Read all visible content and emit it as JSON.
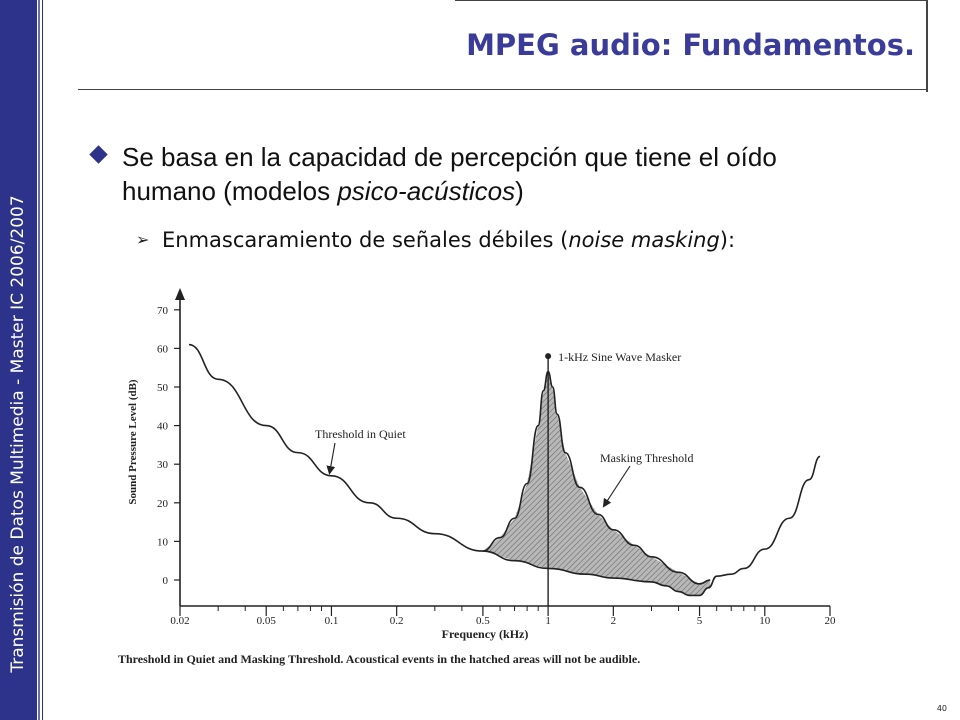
{
  "sidebar": {
    "text": "Transmisión de Datos Multimedia - Master IC 2006/2007"
  },
  "slide": {
    "title": "MPEG audio: Fundamentos.",
    "bullet1": {
      "pre": "Se basa en la capacidad de percepción que tiene el oído humano (modelos ",
      "em": "psico-acústicos",
      "post": ")"
    },
    "bullet2": {
      "pre": "Enmascaramiento de señales débiles (",
      "em": "noise masking",
      "post": "):"
    },
    "page_number": "40"
  },
  "colors": {
    "sidebar": "#2d338a",
    "title": "#3b3b9a",
    "hatch": "#9a9a9a"
  },
  "icons": {
    "bullet1": "diamond-bullet-icon",
    "bullet2": "arrowhead-bullet-icon"
  },
  "chart_data": {
    "type": "line",
    "xlabel": "Frequency (kHz)",
    "ylabel": "Sound Pressure Level (dB)",
    "x_scale": "log",
    "xlim": [
      0.02,
      20
    ],
    "ylim": [
      -5,
      75
    ],
    "x_ticks": [
      0.02,
      0.05,
      0.1,
      0.2,
      0.5,
      1,
      2,
      5,
      10,
      20
    ],
    "x_tick_labels": [
      "0.02",
      "0.05",
      "0.1",
      "0.2",
      "0.5",
      "1",
      "2",
      "5",
      "10",
      "20"
    ],
    "y_ticks": [
      0,
      10,
      20,
      30,
      40,
      50,
      60,
      70
    ],
    "y_tick_labels": [
      "0",
      "10",
      "20",
      "30",
      "40",
      "50",
      "60",
      "70"
    ],
    "series": [
      {
        "name": "Threshold in Quiet",
        "x": [
          0.022,
          0.03,
          0.05,
          0.07,
          0.1,
          0.15,
          0.2,
          0.3,
          0.5,
          0.7,
          1,
          1.5,
          2,
          3,
          3.5,
          4,
          4.5,
          5,
          5.5,
          6,
          7,
          8,
          10,
          13,
          16,
          18
        ],
        "y": [
          61,
          52,
          40,
          33,
          27,
          20,
          16,
          12,
          7.5,
          5,
          3,
          1.5,
          0.5,
          -0.5,
          -1.5,
          -3,
          -4,
          -4,
          -2,
          1,
          1.5,
          3,
          8,
          16,
          26,
          32
        ]
      },
      {
        "name": "Masking Threshold",
        "x": [
          0.5,
          0.6,
          0.7,
          0.8,
          0.9,
          0.95,
          1,
          1.05,
          1.1,
          1.2,
          1.4,
          1.7,
          2,
          2.5,
          3,
          4,
          5,
          5.6
        ],
        "y": [
          7.5,
          11,
          16,
          25,
          40,
          49,
          54,
          50,
          43,
          33,
          24,
          17,
          13,
          9,
          6,
          2,
          -1,
          0
        ]
      }
    ],
    "markers": [
      {
        "label": "1-kHz Sine Wave Masker",
        "x": 1,
        "y": 58
      }
    ],
    "annotations": [
      "Threshold in Quiet",
      "Masking Threshold",
      "1-kHz Sine Wave Masker"
    ],
    "caption": "Threshold in Quiet and Masking Threshold. Acoustical events in the hatched areas will not be audible."
  }
}
